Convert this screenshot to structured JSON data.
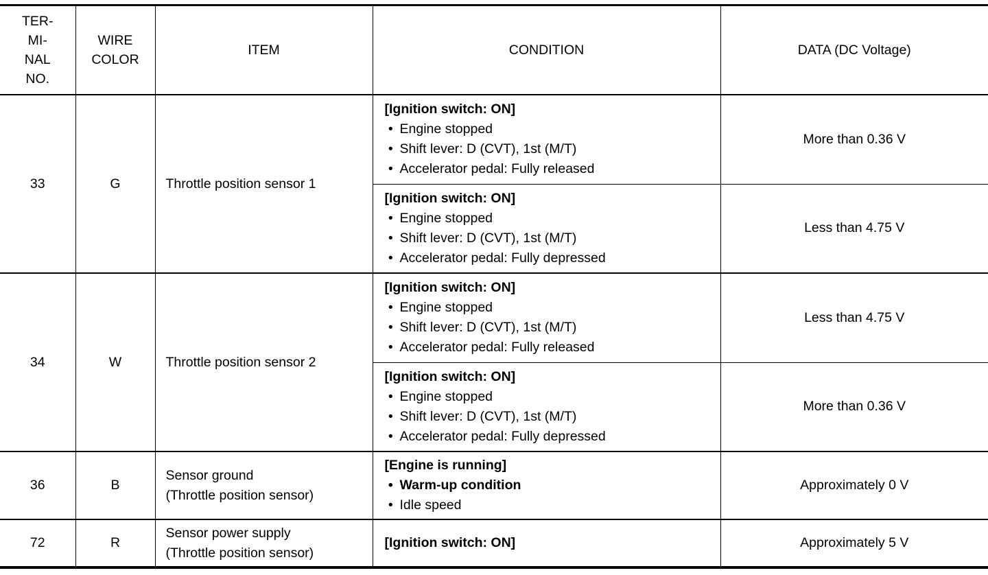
{
  "headers": {
    "terminal": [
      "TER-",
      "MI-",
      "NAL",
      "NO."
    ],
    "wire": [
      "WIRE",
      "COLOR"
    ],
    "item": "ITEM",
    "condition": "CONDITION",
    "data": "DATA (DC Voltage)"
  },
  "rows": [
    {
      "terminal": "33",
      "wire": "G",
      "item": [
        "Throttle position sensor 1"
      ],
      "conditions": [
        {
          "header": "[Ignition switch: ON]",
          "bullets": [
            {
              "text": "Engine stopped"
            },
            {
              "text": "Shift lever: D (CVT), 1st (M/T)"
            },
            {
              "text": "Accelerator pedal: Fully released"
            }
          ],
          "data": "More than 0.36 V"
        },
        {
          "header": "[Ignition switch: ON]",
          "bullets": [
            {
              "text": "Engine stopped"
            },
            {
              "text": "Shift lever: D (CVT), 1st (M/T)"
            },
            {
              "text": "Accelerator pedal: Fully depressed"
            }
          ],
          "data": "Less than 4.75 V"
        }
      ]
    },
    {
      "terminal": "34",
      "wire": "W",
      "item": [
        "Throttle position sensor 2"
      ],
      "conditions": [
        {
          "header": "[Ignition switch: ON]",
          "bullets": [
            {
              "text": "Engine stopped"
            },
            {
              "text": "Shift lever: D (CVT), 1st (M/T)"
            },
            {
              "text": "Accelerator pedal: Fully released"
            }
          ],
          "data": "Less than 4.75 V"
        },
        {
          "header": "[Ignition switch: ON]",
          "bullets": [
            {
              "text": "Engine stopped"
            },
            {
              "text": "Shift lever: D (CVT), 1st (M/T)"
            },
            {
              "text": "Accelerator pedal: Fully depressed"
            }
          ],
          "data": "More than 0.36 V"
        }
      ]
    },
    {
      "terminal": "36",
      "wire": "B",
      "item": [
        "Sensor ground",
        "(Throttle position sensor)"
      ],
      "conditions": [
        {
          "header": "[Engine is running]",
          "bullets": [
            {
              "text": "Warm-up condition",
              "bold": true
            },
            {
              "text": "Idle speed"
            }
          ],
          "data": "Approximately 0 V"
        }
      ]
    },
    {
      "terminal": "72",
      "wire": "R",
      "item": [
        "Sensor power supply",
        "(Throttle position sensor)"
      ],
      "conditions": [
        {
          "header": "[Ignition switch: ON]",
          "bullets": [],
          "data": "Approximately 5 V"
        }
      ]
    }
  ]
}
